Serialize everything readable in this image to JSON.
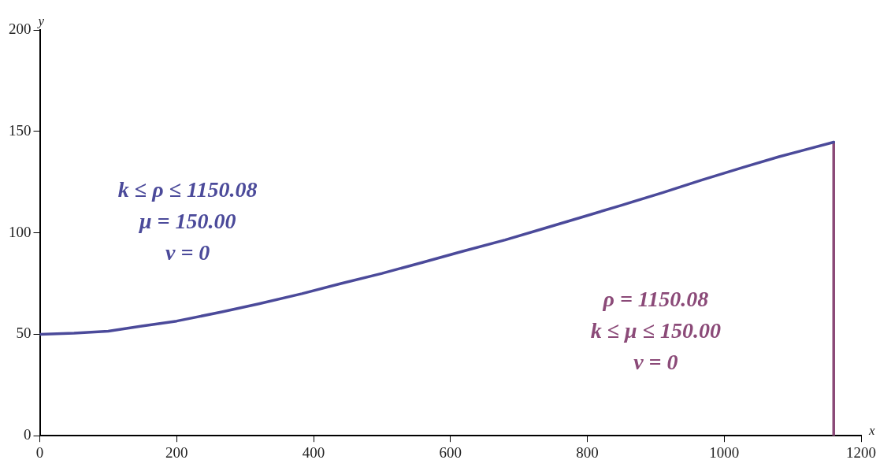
{
  "chart_data": {
    "type": "line",
    "xlabel": "x",
    "ylabel": "y",
    "xlim": [
      0,
      1200
    ],
    "xticks": [
      0,
      200,
      400,
      600,
      800,
      1000,
      1200
    ],
    "ylim": [
      0,
      200
    ],
    "yticks": [
      0,
      50,
      100,
      150,
      200
    ],
    "grid": false,
    "legend": false,
    "marker": "none",
    "line_style": "solid",
    "series": [
      {
        "color": "#4b4a9a",
        "x": [
          0,
          50,
          100,
          149,
          200,
          266,
          320,
          383,
          440,
          500,
          560,
          616,
          680,
          733,
          790,
          850,
          910,
          967,
          1030,
          1080,
          1160
        ],
        "values": [
          50,
          50.5,
          51.5,
          54,
          56.5,
          61,
          65,
          70,
          75,
          80,
          85.5,
          90.7,
          96.5,
          101.8,
          107.5,
          113.6,
          119.8,
          126,
          132.5,
          137.5,
          144.7
        ]
      },
      {
        "color": "#8b4a78",
        "x": [
          1160,
          1160
        ],
        "values": [
          144.7,
          0
        ]
      }
    ],
    "annotations": [
      "k ≤ ρ ≤ 1150.08\nμ = 150.00\nν = 0",
      "ρ = 1150.08\nk ≤ μ ≤ 150.00\nν = 0"
    ]
  }
}
